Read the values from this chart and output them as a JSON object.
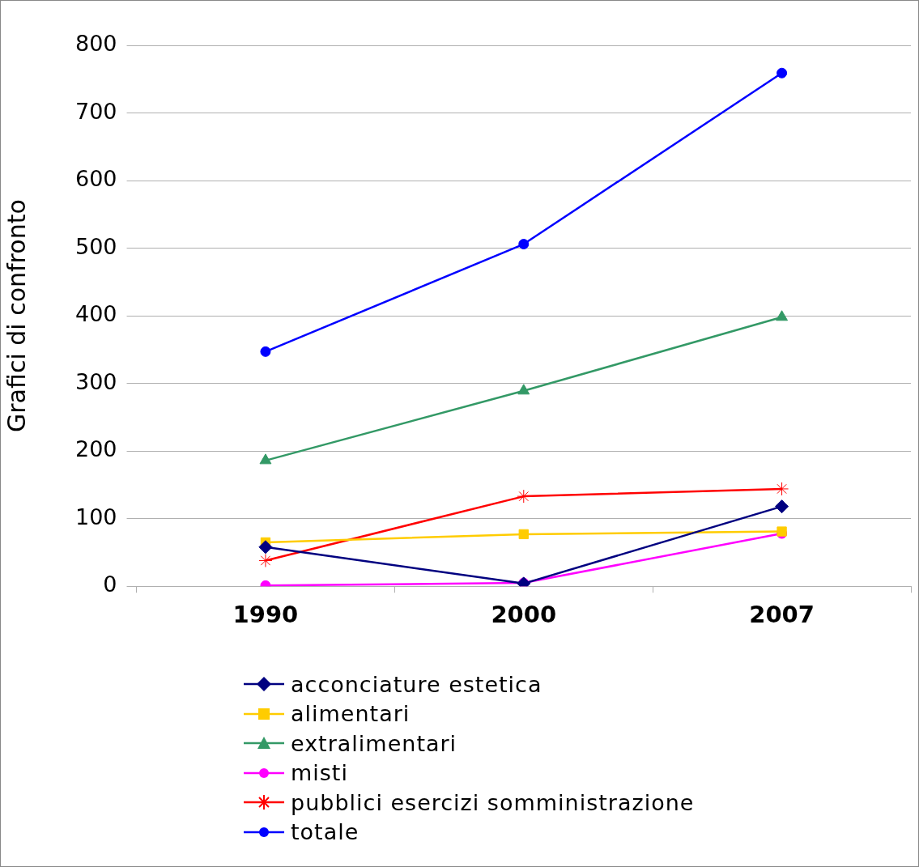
{
  "chart_data": {
    "type": "line",
    "ylabel": "Grafici di confronto",
    "categories": [
      "1990",
      "2000",
      "2007"
    ],
    "series": [
      {
        "name": "acconciature estetica",
        "color": "#000080",
        "marker": "diamond",
        "values": [
          58,
          4,
          118
        ]
      },
      {
        "name": "alimentari",
        "color": "#ffcc00",
        "marker": "square",
        "values": [
          65,
          77,
          81
        ]
      },
      {
        "name": "extralimentari",
        "color": "#339966",
        "marker": "triangle",
        "values": [
          186,
          289,
          398
        ]
      },
      {
        "name": "misti",
        "color": "#ff00ff",
        "marker": "circle",
        "values": [
          1,
          5,
          78
        ]
      },
      {
        "name": "pubblici esercizi somministrazione",
        "color": "#ff0000",
        "marker": "cross",
        "values": [
          38,
          133,
          144
        ]
      },
      {
        "name": "totale",
        "color": "#0000ff",
        "marker": "circle",
        "values": [
          347,
          506,
          759
        ]
      }
    ],
    "ylim": [
      0,
      800
    ],
    "yticks": [
      0,
      100,
      200,
      300,
      400,
      500,
      600,
      700,
      800
    ],
    "grid": "y",
    "legend": "bottom"
  }
}
